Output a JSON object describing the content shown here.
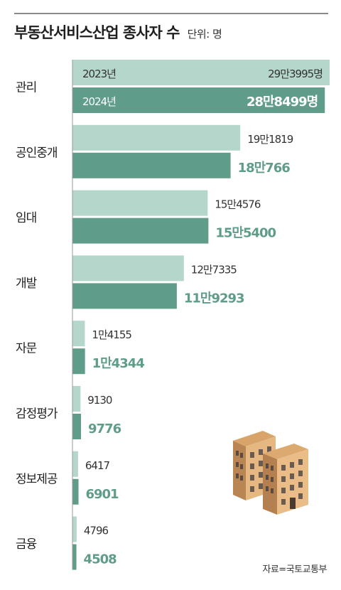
{
  "header": {
    "title": "부동산서비스산업 종사자 수",
    "unit": "단위: 명"
  },
  "source": "자료=국토교통부",
  "colors": {
    "bar_2023": "#b5d6cb",
    "bar_2024": "#5f9c8a",
    "label_2024": "#5f9c8a",
    "axis": "#999999"
  },
  "chart_data": {
    "type": "bar",
    "orientation": "horizontal",
    "title": "부동산서비스산업 종사자 수",
    "unit": "단위: 명",
    "categories": [
      "관리",
      "공인중개",
      "임대",
      "개발",
      "자문",
      "감정평가",
      "정보제공",
      "금융"
    ],
    "series": [
      {
        "name": "2023년",
        "values": [
          293995,
          191819,
          154576,
          127335,
          14155,
          9130,
          6417,
          4796
        ],
        "labels": [
          "29만3995명",
          "19만1819",
          "15만4576",
          "12만7335",
          "1만4155",
          "9130",
          "6417",
          "4796"
        ]
      },
      {
        "name": "2024년",
        "values": [
          288499,
          180766,
          155400,
          119293,
          14344,
          9776,
          6901,
          4508
        ],
        "labels": [
          "28만8499명",
          "18만766",
          "15만5400",
          "11만9293",
          "1만4344",
          "9776",
          "6901",
          "4508"
        ]
      }
    ],
    "legend": "inside-first-bar",
    "grid": false
  }
}
